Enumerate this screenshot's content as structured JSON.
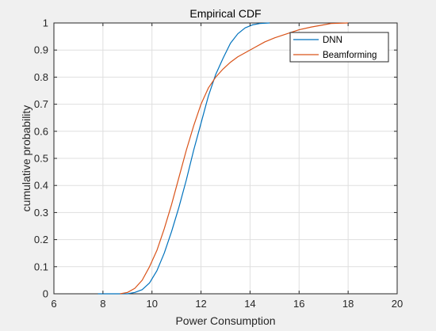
{
  "chart_data": {
    "type": "line",
    "title": "Empirical CDF",
    "xlabel": "Power Consumption",
    "ylabel": "cumulative probability",
    "xlim": [
      6,
      20
    ],
    "ylim": [
      0,
      1
    ],
    "xticks": [
      6,
      8,
      10,
      12,
      14,
      16,
      18,
      20
    ],
    "yticks": [
      0,
      0.1,
      0.2,
      0.3,
      0.4,
      0.5,
      0.6,
      0.7,
      0.8,
      0.9,
      1
    ],
    "grid": true,
    "legend_position": "top-right",
    "series": [
      {
        "name": "DNN",
        "color": "#0072bd",
        "x": [
          7.8,
          9.0,
          9.3,
          9.6,
          9.9,
          10.2,
          10.5,
          10.8,
          11.1,
          11.4,
          11.7,
          12.0,
          12.3,
          12.6,
          12.9,
          13.2,
          13.5,
          13.8,
          14.1,
          14.4,
          14.8
        ],
        "y": [
          0,
          0,
          0.005,
          0.015,
          0.04,
          0.085,
          0.15,
          0.23,
          0.32,
          0.42,
          0.53,
          0.63,
          0.73,
          0.81,
          0.87,
          0.925,
          0.96,
          0.982,
          0.993,
          0.998,
          1.0
        ]
      },
      {
        "name": "Beamforming",
        "color": "#d95319",
        "x": [
          8.7,
          9.0,
          9.3,
          9.6,
          9.9,
          10.2,
          10.5,
          10.8,
          11.1,
          11.4,
          11.7,
          12.0,
          12.3,
          12.6,
          12.9,
          13.2,
          13.5,
          13.8,
          14.2,
          14.6,
          15.0,
          15.5,
          16.0,
          16.5,
          17.0,
          17.3,
          18.0
        ],
        "y": [
          0,
          0.005,
          0.02,
          0.05,
          0.1,
          0.16,
          0.24,
          0.33,
          0.43,
          0.53,
          0.62,
          0.7,
          0.76,
          0.8,
          0.83,
          0.855,
          0.875,
          0.89,
          0.91,
          0.93,
          0.945,
          0.96,
          0.975,
          0.985,
          0.993,
          0.998,
          1.0
        ]
      }
    ]
  }
}
